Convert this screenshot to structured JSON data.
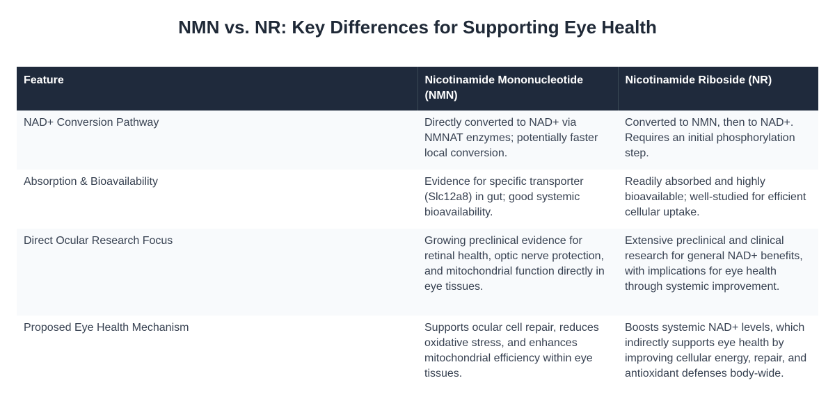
{
  "title": "NMN vs. NR: Key Differences for Supporting Eye Health",
  "table": {
    "headers": [
      "Feature",
      "Nicotinamide Mononucleotide (NMN)",
      "Nicotinamide Riboside (NR)"
    ],
    "rows": [
      [
        "NAD+ Conversion Pathway",
        "Directly converted to NAD+ via NMNAT enzymes; potentially faster local conversion.",
        "Converted to NMN, then to NAD+. Requires an initial phosphorylation step."
      ],
      [
        "Absorption & Bioavailability",
        "Evidence for specific transporter (Slc12a8) in gut; good systemic bioavailability.",
        "Readily absorbed and highly bioavailable; well-studied for efficient cellular uptake."
      ],
      [
        "Direct Ocular Research Focus",
        "Growing preclinical evidence for retinal health, optic nerve protection, and mitochondrial function directly in eye tissues.",
        "Extensive preclinical and clinical research for general NAD+ benefits, with implications for eye health through systemic improvement."
      ],
      [
        "Proposed Eye Health Mechanism",
        "Supports ocular cell repair, reduces oxidative stress, and enhances mitochondrial efficiency within eye tissues.",
        "Boosts systemic NAD+ levels, which indirectly supports eye health by improving cellular energy, repair, and antioxidant defenses body-wide."
      ]
    ]
  },
  "colors": {
    "header_bg": "#1f2a3c",
    "alt_row_bg": "#f8fafc",
    "title": "#1f2937"
  }
}
